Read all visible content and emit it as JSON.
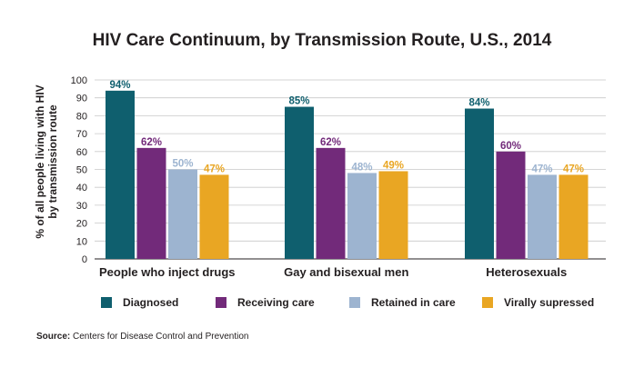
{
  "chart_data": {
    "type": "bar",
    "title": "HIV Care Continuum, by Transmission Route, U.S., 2014",
    "ylabel_line1": "% of all people living with HIV",
    "ylabel_line2": "by transmission route",
    "categories": [
      "People who inject drugs",
      "Gay and bisexual men",
      "Heterosexuals"
    ],
    "ylim": [
      0,
      100
    ],
    "yticks": [
      0,
      10,
      20,
      30,
      40,
      50,
      60,
      70,
      80,
      90,
      100
    ],
    "grid": true,
    "legend_position": "bottom",
    "series": [
      {
        "name": "Diagnosed",
        "color": "#0f5f6e",
        "values": [
          94,
          85,
          84
        ],
        "labels": [
          "94%",
          "85%",
          "84%"
        ]
      },
      {
        "name": "Receiving care",
        "color": "#722a7a",
        "values": [
          62,
          62,
          60
        ],
        "labels": [
          "62%",
          "62%",
          "60%"
        ]
      },
      {
        "name": "Retained in care",
        "color": "#9db4d0",
        "values": [
          50,
          48,
          47
        ],
        "labels": [
          "50%",
          "48%",
          "47%"
        ]
      },
      {
        "name": "Virally supressed",
        "color": "#e9a623",
        "values": [
          47,
          49,
          47
        ],
        "labels": [
          "47%",
          "49%",
          "47%"
        ]
      }
    ]
  },
  "source": {
    "label": "Source:",
    "text": " Centers for Disease Control and Prevention"
  }
}
